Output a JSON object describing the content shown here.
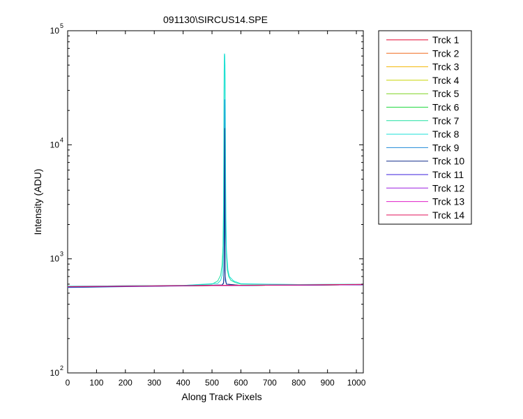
{
  "figure": {
    "title": "091130\\SIRCUS14.SPE"
  },
  "chart_data": {
    "type": "line",
    "title": "091130\\SIRCUS14.SPE",
    "xlabel": "Along Track Pixels",
    "ylabel": "Intensity (ADU)",
    "xlim": [
      0,
      1024
    ],
    "ylim": [
      100,
      100000
    ],
    "yscale": "log",
    "grid": false,
    "legend_position": "outside-right",
    "x_ticks": [
      {
        "value": 0,
        "label": "0"
      },
      {
        "value": 100,
        "label": "100"
      },
      {
        "value": 200,
        "label": "200"
      },
      {
        "value": 300,
        "label": "300"
      },
      {
        "value": 400,
        "label": "400"
      },
      {
        "value": 500,
        "label": "500"
      },
      {
        "value": 600,
        "label": "600"
      },
      {
        "value": 700,
        "label": "700"
      },
      {
        "value": 800,
        "label": "800"
      },
      {
        "value": 900,
        "label": "900"
      },
      {
        "value": 1000,
        "label": "1000"
      }
    ],
    "y_ticks": [
      {
        "value": 100,
        "base": "10",
        "exp": "2"
      },
      {
        "value": 1000,
        "base": "10",
        "exp": "3"
      },
      {
        "value": 10000,
        "base": "10",
        "exp": "4"
      },
      {
        "value": 100000,
        "base": "10",
        "exp": "5"
      }
    ],
    "series": [
      {
        "name": "Trck 1",
        "color": "#e4002b",
        "x": [
          0,
          200,
          400,
          600,
          800,
          1024
        ],
        "y": [
          570,
          575,
          580,
          585,
          588,
          592
        ]
      },
      {
        "name": "Trck 2",
        "color": "#f06a1e",
        "x": [
          0,
          200,
          400,
          600,
          800,
          1024
        ],
        "y": [
          570,
          575,
          580,
          585,
          588,
          592
        ]
      },
      {
        "name": "Trck 3",
        "color": "#f2b705",
        "x": [
          0,
          200,
          400,
          600,
          800,
          1024
        ],
        "y": [
          570,
          575,
          580,
          585,
          588,
          592
        ]
      },
      {
        "name": "Trck 4",
        "color": "#c8d400",
        "x": [
          0,
          200,
          400,
          600,
          800,
          1024
        ],
        "y": [
          570,
          575,
          580,
          585,
          588,
          592
        ]
      },
      {
        "name": "Trck 5",
        "color": "#7ed321",
        "x": [
          0,
          200,
          400,
          600,
          800,
          1024
        ],
        "y": [
          572,
          576,
          581,
          585,
          588,
          592
        ]
      },
      {
        "name": "Trck 6",
        "color": "#22d940",
        "x": [
          0,
          200,
          400,
          600,
          800,
          1024
        ],
        "y": [
          572,
          576,
          581,
          585,
          588,
          592
        ]
      },
      {
        "name": "Trck 7",
        "color": "#1fe0a0",
        "x": [
          0,
          200,
          400,
          500,
          520,
          530,
          535,
          538,
          540,
          541,
          542,
          543,
          544,
          545,
          546,
          547,
          548,
          550,
          553,
          558,
          565,
          580,
          600,
          800,
          1024
        ],
        "y": [
          575,
          580,
          585,
          600,
          640,
          720,
          900,
          1300,
          3000,
          12000,
          45000,
          62000,
          60000,
          38000,
          12000,
          4000,
          1800,
          1100,
          800,
          700,
          650,
          620,
          600,
          595,
          598
        ]
      },
      {
        "name": "Trck 8",
        "color": "#1ee0d8",
        "x": [
          0,
          200,
          400,
          520,
          530,
          535,
          538,
          540,
          541,
          542,
          543,
          544,
          545,
          546,
          547,
          548,
          550,
          555,
          560,
          575,
          600,
          800,
          1024
        ],
        "y": [
          575,
          580,
          585,
          610,
          650,
          720,
          900,
          1600,
          7000,
          30000,
          63000,
          62000,
          50000,
          20000,
          6000,
          2500,
          1200,
          800,
          700,
          640,
          605,
          595,
          598
        ]
      },
      {
        "name": "Trck 9",
        "color": "#1e88d8",
        "x": [
          0,
          200,
          400,
          535,
          540,
          542,
          543,
          544,
          545,
          546,
          550,
          600,
          800,
          1024
        ],
        "y": [
          560,
          570,
          578,
          590,
          620,
          900,
          6000,
          25000,
          4000,
          700,
          600,
          585,
          588,
          592
        ]
      },
      {
        "name": "Trck 10",
        "color": "#102a8a",
        "x": [
          0,
          200,
          400,
          535,
          540,
          542,
          543,
          544,
          545,
          546,
          550,
          600,
          800,
          1024
        ],
        "y": [
          565,
          572,
          580,
          590,
          610,
          800,
          3500,
          14000,
          2500,
          650,
          600,
          585,
          588,
          592
        ]
      },
      {
        "name": "Trck 11",
        "color": "#3a1edc",
        "x": [
          0,
          200,
          400,
          600,
          800,
          1024
        ],
        "y": [
          568,
          574,
          580,
          585,
          588,
          594
        ]
      },
      {
        "name": "Trck 12",
        "color": "#9b1ee0",
        "x": [
          0,
          200,
          400,
          600,
          800,
          1024
        ],
        "y": [
          568,
          574,
          580,
          585,
          588,
          594
        ]
      },
      {
        "name": "Trck 13",
        "color": "#e01ec8",
        "x": [
          0,
          200,
          400,
          600,
          800,
          1024
        ],
        "y": [
          570,
          576,
          582,
          586,
          590,
          596
        ]
      },
      {
        "name": "Trck 14",
        "color": "#e0105a",
        "x": [
          0,
          200,
          400,
          600,
          800,
          1024
        ],
        "y": [
          570,
          576,
          583,
          587,
          591,
          597
        ]
      }
    ]
  }
}
